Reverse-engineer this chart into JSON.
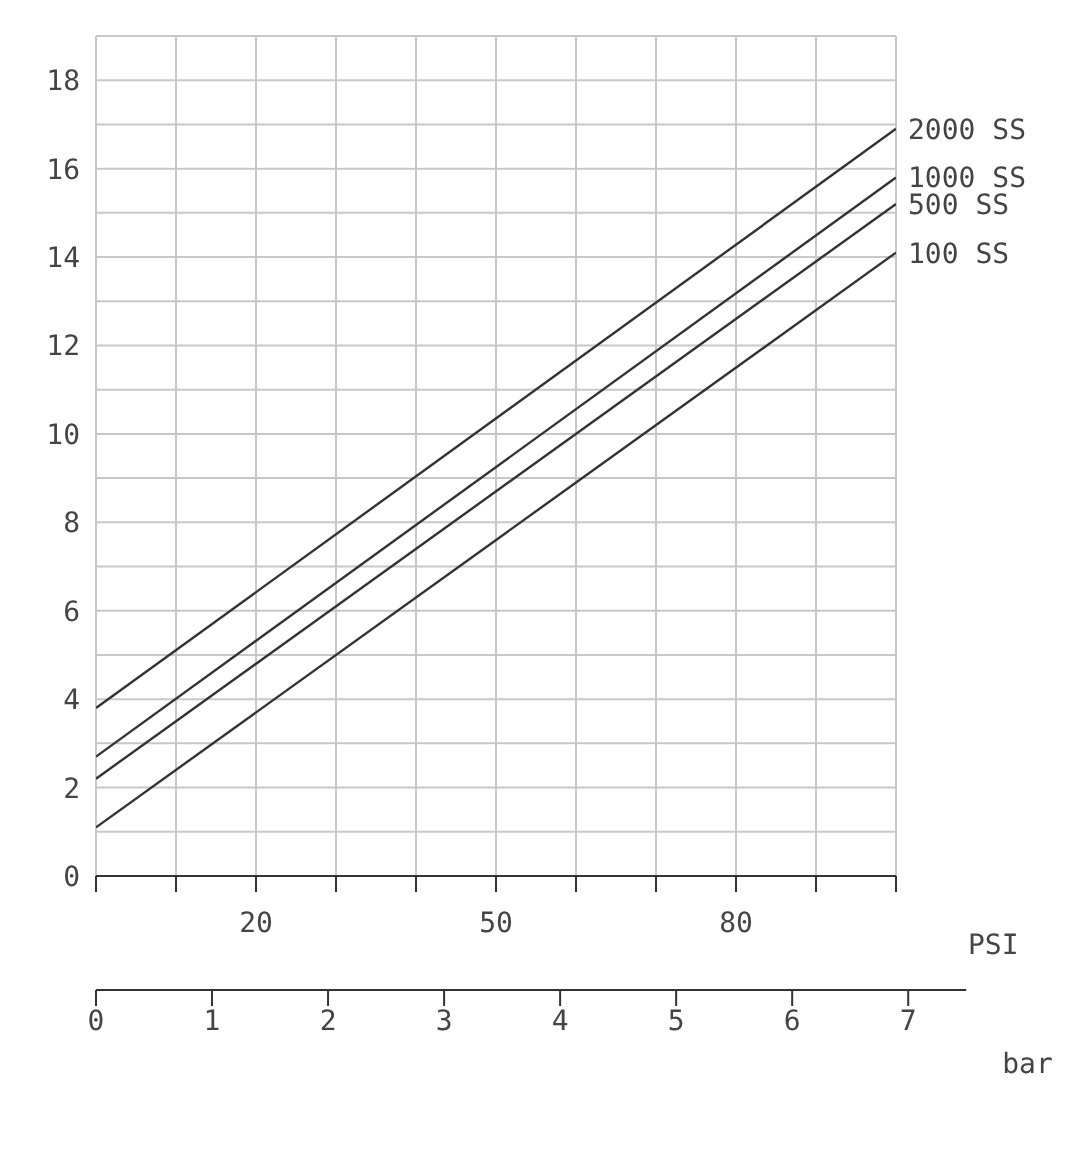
{
  "chart_data": {
    "type": "line",
    "x": [
      0,
      100
    ],
    "series": [
      {
        "name": "2000 SS",
        "color": "#333333",
        "values": [
          3.8,
          16.9
        ]
      },
      {
        "name": "1000 SS",
        "color": "#333333",
        "values": [
          2.7,
          15.8
        ]
      },
      {
        "name": "500 SS",
        "color": "#333333",
        "values": [
          2.2,
          15.2
        ]
      },
      {
        "name": "100 SS",
        "color": "#333333",
        "values": [
          1.1,
          14.1
        ]
      }
    ],
    "xlim": [
      0,
      100
    ],
    "xticks": [
      {
        "value": 0,
        "label": null
      },
      {
        "value": 10,
        "label": null
      },
      20,
      {
        "value": 30,
        "label": null
      },
      {
        "value": 40,
        "label": null
      },
      50,
      {
        "value": 60,
        "label": null
      },
      {
        "value": 70,
        "label": null
      },
      80,
      {
        "value": 90,
        "label": null
      },
      {
        "value": 100,
        "label": null
      }
    ],
    "xlabel": "PSI",
    "x2lim": [
      0,
      7.5
    ],
    "x2ticks": [
      0,
      1,
      2,
      3,
      4,
      5,
      6,
      7
    ],
    "x2label": "bar",
    "ylim": [
      0,
      19
    ],
    "yticks": [
      0,
      {
        "value": 1,
        "label": null
      },
      2,
      {
        "value": 3,
        "label": null
      },
      4,
      {
        "value": 5,
        "label": null
      },
      6,
      {
        "value": 7,
        "label": null
      },
      8,
      {
        "value": 9,
        "label": null
      },
      10,
      {
        "value": 11,
        "label": null
      },
      12,
      {
        "value": 13,
        "label": null
      },
      14,
      {
        "value": 15,
        "label": null
      },
      16,
      {
        "value": 17,
        "label": null
      },
      18
    ],
    "grid": true,
    "marker": "none",
    "line_style": "solid",
    "legend": false
  }
}
